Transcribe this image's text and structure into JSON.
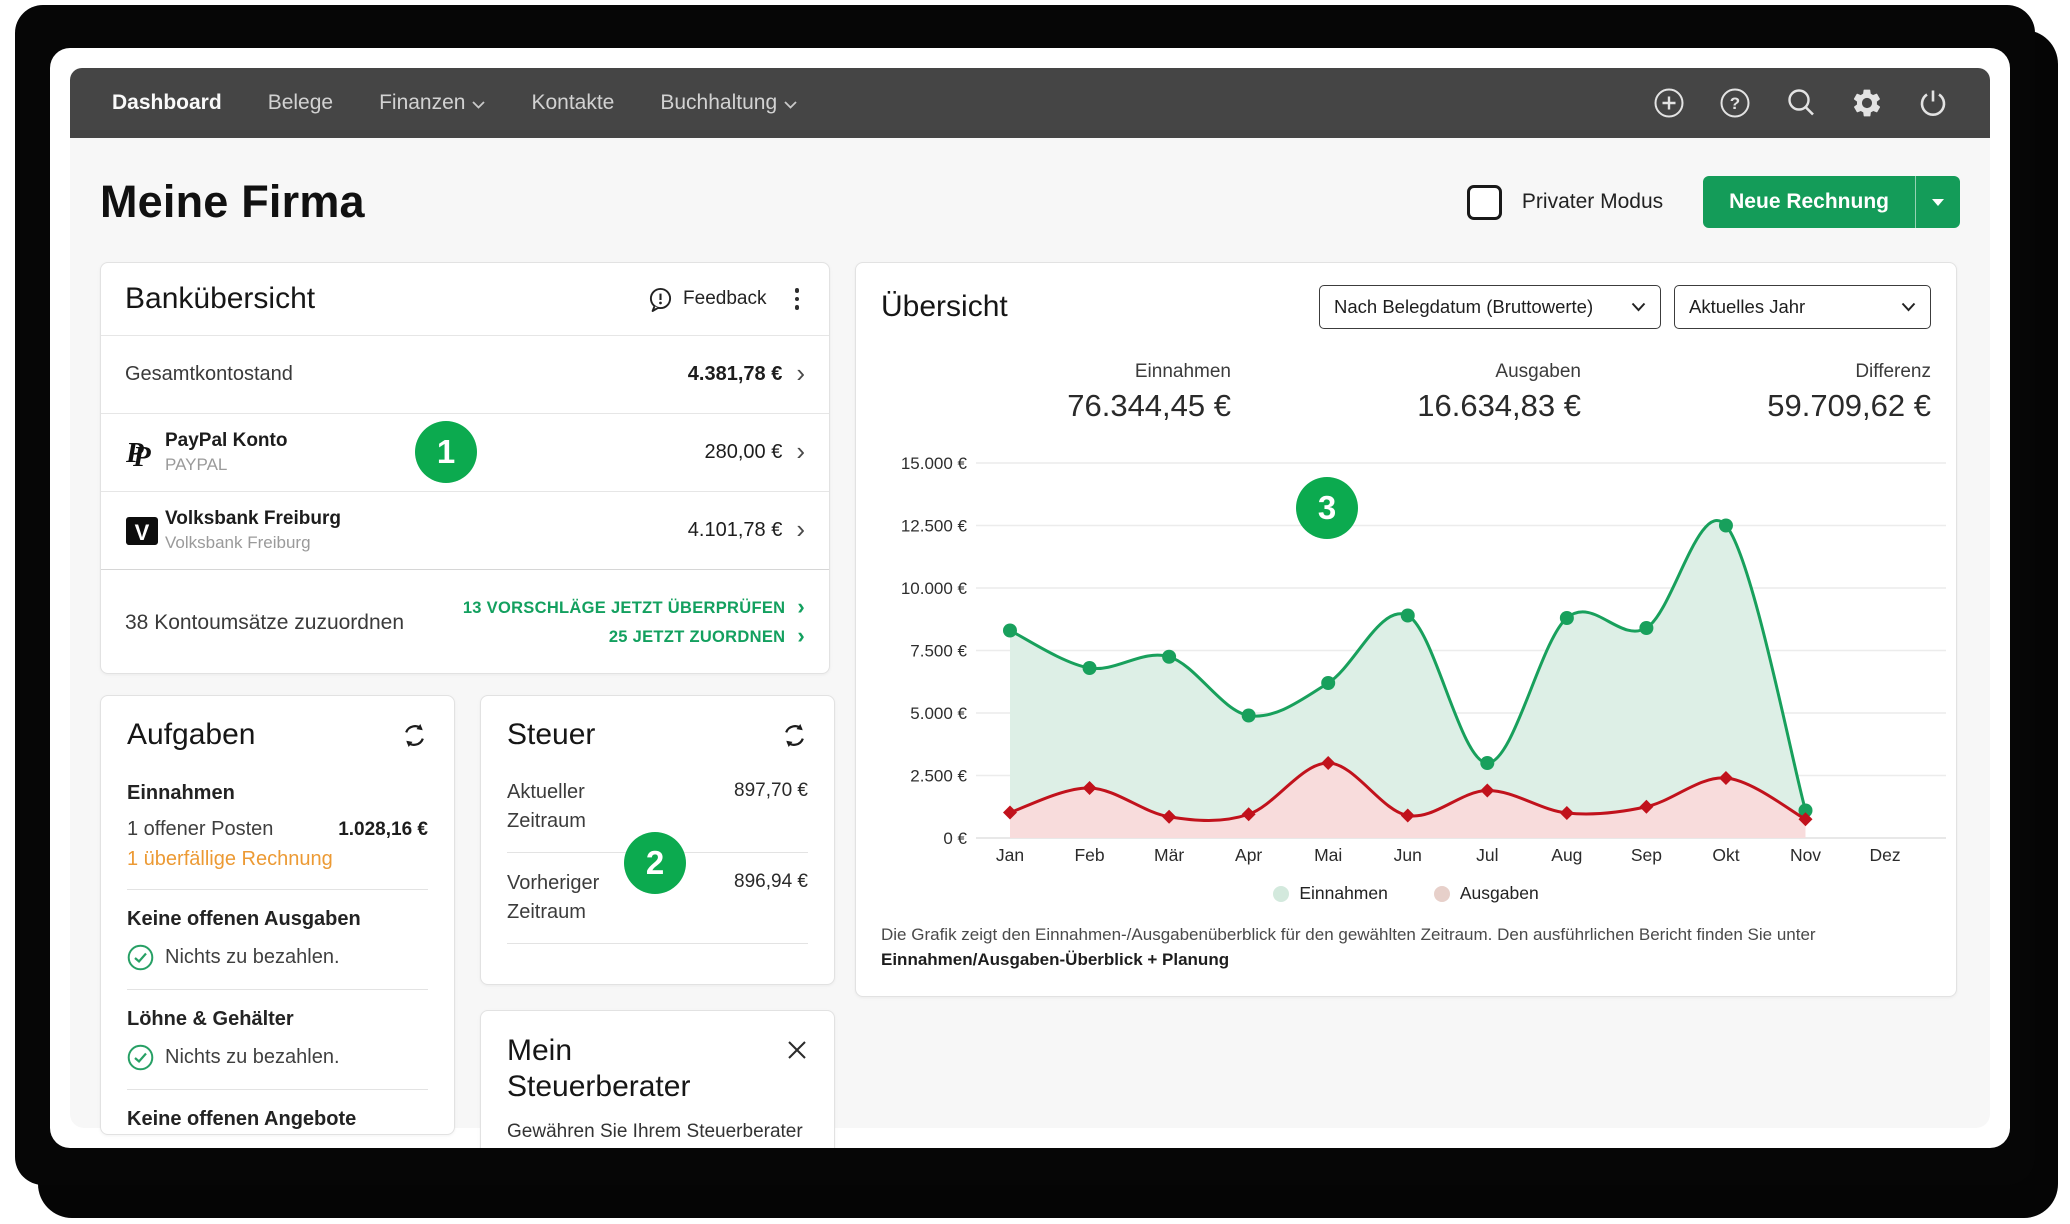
{
  "nav": {
    "items": [
      {
        "label": "Dashboard"
      },
      {
        "label": "Belege"
      },
      {
        "label": "Finanzen"
      },
      {
        "label": "Kontakte"
      },
      {
        "label": "Buchhaltung"
      }
    ]
  },
  "header": {
    "title": "Meine Firma",
    "private_mode_label": "Privater Modus",
    "new_invoice_label": "Neue Rechnung"
  },
  "bank": {
    "title": "Bankübersicht",
    "feedback_label": "Feedback",
    "total_label": "Gesamtkontostand",
    "total_value": "4.381,78 €",
    "accounts": [
      {
        "name": "PayPal Konto",
        "subtitle": "PAYPAL",
        "value": "280,00 €"
      },
      {
        "name": "Volksbank Freiburg",
        "subtitle": "Volksbank Freiburg",
        "value": "4.101,78 €"
      }
    ],
    "footer_label": "38 Kontoumsätze zuzuordnen",
    "links": [
      {
        "label": "13 VORSCHLÄGE JETZT ÜBERPRÜFEN"
      },
      {
        "label": "25 JETZT ZUORDNEN"
      }
    ]
  },
  "tasks": {
    "title": "Aufgaben",
    "income_heading": "Einnahmen",
    "open_item_label": "1 offener Posten",
    "open_item_value": "1.028,16 €",
    "overdue_label": "1 überfällige Rechnung",
    "expenses_heading": "Keine offenen Ausgaben",
    "expenses_ok": "Nichts zu bezahlen.",
    "wages_heading": "Löhne & Gehälter",
    "wages_ok": "Nichts zu bezahlen.",
    "offers_heading": "Keine offenen Angebote"
  },
  "tax": {
    "title": "Steuer",
    "rows": [
      {
        "label": "Aktueller Zeitraum",
        "value": "897,70 €"
      },
      {
        "label": "Vorheriger Zeitraum",
        "value": "896,94 €"
      }
    ]
  },
  "advisor": {
    "title": "Mein Steuerberater",
    "teaser": "Gewähren Sie Ihrem Steuerberater"
  },
  "overview": {
    "title": "Übersicht",
    "filters": [
      "Nach Belegdatum (Bruttowerte)",
      "Aktuelles Jahr"
    ],
    "stats": [
      {
        "label": "Einnahmen",
        "value": "76.344,45 €"
      },
      {
        "label": "Ausgaben",
        "value": "16.634,83 €"
      },
      {
        "label": "Differenz",
        "value": "59.709,62 €"
      }
    ],
    "footnote": "Die Grafik zeigt den Einnahmen-/Ausgabenüberblick für den gewählten Zeitraum. Den ausführlichen Bericht finden Sie unter",
    "footnote_bold": "Einnahmen/Ausgaben-Überblick + Planung"
  },
  "chart_data": {
    "type": "area",
    "title": "Übersicht",
    "x": [
      "Jan",
      "Feb",
      "Mär",
      "Apr",
      "Mai",
      "Jun",
      "Jul",
      "Aug",
      "Sep",
      "Okt",
      "Nov",
      "Dez"
    ],
    "series": [
      {
        "name": "Einnahmen",
        "color": "#18a05c",
        "fill": "#ddefe6",
        "legend_color": "#d3e9dd",
        "values": [
          8300,
          6800,
          7250,
          4900,
          6200,
          8900,
          3000,
          8800,
          8400,
          12500,
          1100,
          null
        ]
      },
      {
        "name": "Ausgaben",
        "color": "#c1121c",
        "fill": "#f8dcdc",
        "legend_color": "#e7d0ca",
        "values": [
          1020,
          2000,
          850,
          950,
          3000,
          900,
          1900,
          1000,
          1250,
          2400,
          750,
          null
        ]
      }
    ],
    "ylim": [
      0,
      15000
    ],
    "yticks": [
      0,
      2500,
      5000,
      7500,
      10000,
      12500,
      15000
    ],
    "ytick_labels": [
      "0 €",
      "2.500 €",
      "5.000 €",
      "7.500 €",
      "10.000 €",
      "12.500 €",
      "15.000 €"
    ],
    "grid": true,
    "legend_position": "bottom"
  },
  "annotations": {
    "markers": [
      "1",
      "2",
      "3"
    ]
  },
  "colors": {
    "accent_green": "#149c59",
    "marker_green": "#0caa4f",
    "link_green": "#13a05f",
    "warning_orange": "#ec9a34",
    "nav_bg": "#454545",
    "chart_income": "#18a05c",
    "chart_expense": "#c1121c"
  }
}
